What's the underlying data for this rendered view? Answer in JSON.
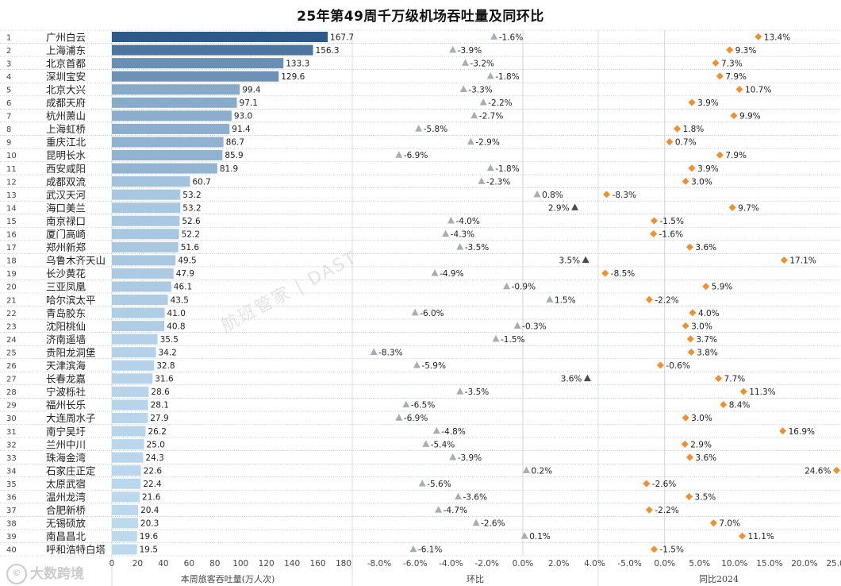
{
  "chart_data": {
    "type": "bar",
    "title": "25年第49周千万级机场吞吐量及同环比",
    "airports": [
      "广州白云",
      "上海浦东",
      "北京首都",
      "深圳宝安",
      "北京大兴",
      "成都天府",
      "杭州萧山",
      "上海虹桥",
      "重庆江北",
      "昆明长水",
      "西安咸阳",
      "成都双流",
      "武汉天河",
      "海口美兰",
      "南京禄口",
      "厦门高崎",
      "郑州新郑",
      "乌鲁木齐天山",
      "长沙黄花",
      "三亚凤凰",
      "哈尔滨太平",
      "青岛胶东",
      "沈阳桃仙",
      "济南遥墙",
      "贵阳龙洞堡",
      "天津滨海",
      "长春龙嘉",
      "宁波栎社",
      "福州长乐",
      "大连周水子",
      "南宁吴圩",
      "兰州中川",
      "珠海金湾",
      "石家庄正定",
      "太原武宿",
      "温州龙湾",
      "合肥新桥",
      "无锡硕放",
      "南昌昌北",
      "呼和浩特白塔"
    ],
    "ranks": [
      "1",
      "2",
      "3",
      "4",
      "5",
      "6",
      "7",
      "8",
      "9",
      "10",
      "11",
      "12",
      "13",
      "14",
      "15",
      "16",
      "17",
      "18",
      "19",
      "20",
      "21",
      "22",
      "23",
      "24",
      "25",
      "26",
      "27",
      "28",
      "29",
      "30",
      "31",
      "32",
      "33",
      "34",
      "35",
      "36",
      "37",
      "38",
      "39",
      "40"
    ],
    "throughput": [
      167.7,
      156.3,
      133.3,
      129.6,
      99.4,
      97.1,
      93.0,
      91.4,
      86.7,
      85.9,
      81.9,
      60.7,
      53.2,
      53.2,
      52.6,
      52.2,
      51.6,
      49.5,
      47.9,
      46.1,
      43.5,
      41.0,
      40.8,
      35.5,
      34.2,
      32.8,
      31.6,
      28.6,
      28.1,
      27.9,
      26.2,
      25.0,
      24.3,
      22.6,
      22.4,
      21.6,
      20.4,
      20.3,
      19.6,
      19.5
    ],
    "throughput_labels": [
      "167.7",
      "156.3",
      "133.3",
      "129.6",
      "99.4",
      "97.1",
      "93.0",
      "91.4",
      "86.7",
      "85.9",
      "81.9",
      "60.7",
      "53.2",
      "53.2",
      "52.6",
      "52.2",
      "51.6",
      "49.5",
      "47.9",
      "46.1",
      "43.5",
      "41.0",
      "40.8",
      "35.5",
      "34.2",
      "32.8",
      "31.6",
      "28.6",
      "28.1",
      "27.9",
      "26.2",
      "25.0",
      "24.3",
      "22.6",
      "22.4",
      "21.6",
      "20.4",
      "20.3",
      "19.6",
      "19.5"
    ],
    "mom": [
      -1.6,
      -3.9,
      -3.2,
      -1.8,
      -3.3,
      -2.2,
      -2.7,
      -5.8,
      -2.9,
      -6.9,
      -1.8,
      -2.3,
      0.8,
      2.9,
      -4.0,
      -4.3,
      -3.5,
      3.5,
      -4.9,
      -0.9,
      1.5,
      -6.0,
      -0.3,
      -1.5,
      -8.3,
      -5.9,
      3.6,
      -3.5,
      -6.5,
      -6.9,
      -4.8,
      -5.4,
      -3.9,
      0.2,
      -5.6,
      -3.6,
      -4.7,
      -2.6,
      0.1,
      -6.1
    ],
    "mom_labels": [
      "-1.6%",
      "-3.9%",
      "-3.2%",
      "-1.8%",
      "-3.3%",
      "-2.2%",
      "-2.7%",
      "-5.8%",
      "-2.9%",
      "-6.9%",
      "-1.8%",
      "-2.3%",
      "0.8%",
      "2.9%",
      "-4.0%",
      "-4.3%",
      "-3.5%",
      "3.5%",
      "-4.9%",
      "-0.9%",
      "1.5%",
      "-6.0%",
      "-0.3%",
      "-1.5%",
      "-8.3%",
      "-5.9%",
      "3.6%",
      "-3.5%",
      "-6.5%",
      "-6.9%",
      "-4.8%",
      "-5.4%",
      "-3.9%",
      "0.2%",
      "-5.6%",
      "-3.6%",
      "-4.7%",
      "-2.6%",
      "0.1%",
      "-6.1%"
    ],
    "yoy": [
      13.4,
      9.3,
      7.3,
      7.9,
      10.7,
      3.9,
      9.9,
      1.8,
      0.7,
      7.9,
      3.9,
      3.0,
      -8.3,
      9.7,
      -1.5,
      -1.6,
      3.6,
      17.1,
      -8.5,
      5.9,
      -2.2,
      4.0,
      3.0,
      3.7,
      3.8,
      -0.6,
      7.7,
      11.3,
      8.4,
      3.0,
      16.9,
      2.9,
      3.6,
      24.6,
      -2.6,
      3.5,
      -2.2,
      7.0,
      11.1,
      -1.5
    ],
    "yoy_labels": [
      "13.4%",
      "9.3%",
      "7.3%",
      "7.9%",
      "10.7%",
      "3.9%",
      "9.9%",
      "1.8%",
      "0.7%",
      "7.9%",
      "3.9%",
      "3.0%",
      "-8.3%",
      "9.7%",
      "-1.5%",
      "-1.6%",
      "3.6%",
      "17.1%",
      "-8.5%",
      "5.9%",
      "-2.2%",
      "4.0%",
      "3.0%",
      "3.7%",
      "3.8%",
      "-0.6%",
      "7.7%",
      "11.3%",
      "8.4%",
      "3.0%",
      "16.9%",
      "2.9%",
      "3.6%",
      "24.6%",
      "-2.6%",
      "3.5%",
      "-2.2%",
      "7.0%",
      "11.1%",
      "-1.5%"
    ],
    "throughput_axis": {
      "xlabel": "本周旅客吞吐量(万人次)",
      "xlim": [
        0,
        180
      ],
      "ticks": [
        "0",
        "20",
        "40",
        "60",
        "80",
        "100",
        "120",
        "140",
        "160",
        "180"
      ]
    },
    "mom_axis": {
      "xlabel": "环比",
      "xlim": [
        -9.5,
        4.2
      ],
      "ticks": [
        "-8.0%",
        "-6.0%",
        "-4.0%",
        "-2.0%",
        "0.0%",
        "2.0%",
        "4.0%"
      ]
    },
    "yoy_axis": {
      "xlabel": "同比2024",
      "xlim": [
        -9.5,
        25.0
      ],
      "ticks": [
        "-5.0%",
        "0.0%",
        "5.0%",
        "10.0%",
        "15.0%",
        "20.0%",
        "25.0%"
      ]
    },
    "colors": {
      "bar_dark": "#2e5a8a",
      "bar_light": "#bcd9ee",
      "mom_marker": "#a6adb4",
      "mom_marker_dark": "#434b55",
      "yoy_marker": "#f28e2b",
      "grid": "#9aaabb"
    }
  },
  "watermark": {
    "center": "航班管家 | DAST",
    "corner": "大数跨境"
  }
}
